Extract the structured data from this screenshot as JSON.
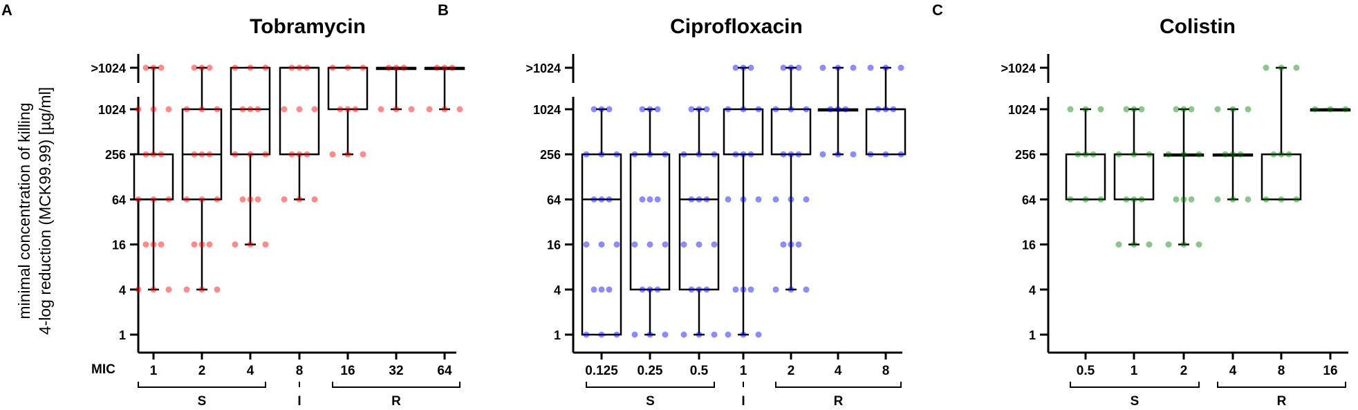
{
  "ylabel_lines": [
    "minimal concentration of killing",
    "4-log reduction (MCK99.99) [µg/ml]"
  ],
  "chart_data": [
    {
      "type": "box",
      "panel": "A",
      "title": "Tobramycin",
      "xlabel": "MIC",
      "color": "#ff0000",
      "y_scale": "log2",
      "y_ticks": [
        "1",
        "4",
        "16",
        "64",
        "256",
        "1024",
        ">1024"
      ],
      "categories": [
        "1",
        "2",
        "4",
        "8",
        "16",
        "32",
        "64"
      ],
      "groups": [
        {
          "label": "S",
          "from": "1",
          "to": "4"
        },
        {
          "label": "I",
          "from": "8",
          "to": "8"
        },
        {
          "label": "R",
          "from": "16",
          "to": "64"
        }
      ],
      "boxes": [
        {
          "category": "1",
          "whisker_low": "4",
          "q1": "64",
          "median": "64",
          "q3": "256",
          "whisker_high": ">1024",
          "points": [
            "4",
            "16",
            "64",
            "256",
            "1024",
            ">1024"
          ]
        },
        {
          "category": "2",
          "whisker_low": "4",
          "q1": "64",
          "median": "256",
          "q3": "1024",
          "whisker_high": ">1024",
          "points": [
            "4",
            "16",
            "64",
            "256",
            "1024",
            ">1024"
          ]
        },
        {
          "category": "4",
          "whisker_low": "16",
          "q1": "256",
          "median": "1024",
          "q3": ">1024",
          "whisker_high": ">1024",
          "points": [
            "16",
            "64",
            "256",
            "1024",
            ">1024"
          ]
        },
        {
          "category": "8",
          "whisker_low": "64",
          "q1": "256",
          "median": ">1024",
          "q3": ">1024",
          "whisker_high": ">1024",
          "points": [
            "64",
            "256",
            "1024",
            ">1024"
          ]
        },
        {
          "category": "16",
          "whisker_low": "256",
          "q1": "1024",
          "median": ">1024",
          "q3": ">1024",
          "whisker_high": ">1024",
          "points": [
            "256",
            "1024",
            ">1024"
          ]
        },
        {
          "category": "32",
          "whisker_low": "1024",
          "q1": ">1024",
          "median": ">1024",
          "q3": ">1024",
          "whisker_high": ">1024",
          "points": [
            "1024",
            ">1024"
          ]
        },
        {
          "category": "64",
          "whisker_low": "1024",
          "q1": ">1024",
          "median": ">1024",
          "q3": ">1024",
          "whisker_high": ">1024",
          "points": [
            "1024",
            ">1024"
          ]
        }
      ]
    },
    {
      "type": "box",
      "panel": "B",
      "title": "Ciprofloxacin",
      "xlabel": "",
      "color": "#0000ff",
      "y_scale": "log2",
      "y_ticks": [
        "1",
        "4",
        "16",
        "64",
        "256",
        "1024",
        ">1024"
      ],
      "categories": [
        "0.125",
        "0.25",
        "0.5",
        "1",
        "2",
        "4",
        "8"
      ],
      "groups": [
        {
          "label": "S",
          "from": "0.125",
          "to": "0.5"
        },
        {
          "label": "I",
          "from": "1",
          "to": "1"
        },
        {
          "label": "R",
          "from": "2",
          "to": "8"
        }
      ],
      "boxes": [
        {
          "category": "0.125",
          "whisker_low": "1",
          "q1": "1",
          "median": "64",
          "q3": "256",
          "whisker_high": "1024",
          "points": [
            "1",
            "4",
            "16",
            "64",
            "256",
            "1024"
          ]
        },
        {
          "category": "0.25",
          "whisker_low": "1",
          "q1": "4",
          "median": "256",
          "q3": "256",
          "whisker_high": "1024",
          "points": [
            "1",
            "4",
            "16",
            "64",
            "256",
            "1024"
          ]
        },
        {
          "category": "0.5",
          "whisker_low": "1",
          "q1": "4",
          "median": "64",
          "q3": "256",
          "whisker_high": "1024",
          "points": [
            "1",
            "4",
            "16",
            "64",
            "256",
            "1024"
          ]
        },
        {
          "category": "1",
          "whisker_low": "1",
          "q1": "256",
          "median": "256",
          "q3": "1024",
          "whisker_high": ">1024",
          "points": [
            "1",
            "4",
            "64",
            "256",
            "1024",
            ">1024"
          ]
        },
        {
          "category": "2",
          "whisker_low": "4",
          "q1": "256",
          "median": "256",
          "q3": "1024",
          "whisker_high": ">1024",
          "points": [
            "4",
            "16",
            "64",
            "256",
            "1024",
            ">1024"
          ]
        },
        {
          "category": "4",
          "whisker_low": "256",
          "q1": "1024",
          "median": "1024",
          "q3": "1024",
          "whisker_high": ">1024",
          "points": [
            "256",
            "1024",
            ">1024"
          ]
        },
        {
          "category": "8",
          "whisker_low": "256",
          "q1": "256",
          "median": "1024",
          "q3": "1024",
          "whisker_high": ">1024",
          "points": [
            "256",
            "1024",
            ">1024"
          ]
        }
      ]
    },
    {
      "type": "box",
      "panel": "C",
      "title": "Colistin",
      "xlabel": "",
      "color": "#008000",
      "y_scale": "log2",
      "y_ticks": [
        "1",
        "4",
        "16",
        "64",
        "256",
        "1024",
        ">1024"
      ],
      "categories": [
        "0.5",
        "1",
        "2",
        "4",
        "8",
        "16"
      ],
      "groups": [
        {
          "label": "S",
          "from": "0.5",
          "to": "2"
        },
        {
          "label": "R",
          "from": "4",
          "to": "16"
        }
      ],
      "boxes": [
        {
          "category": "0.5",
          "whisker_low": "64",
          "q1": "64",
          "median": "256",
          "q3": "256",
          "whisker_high": "1024",
          "points": [
            "64",
            "256",
            "1024"
          ]
        },
        {
          "category": "1",
          "whisker_low": "16",
          "q1": "64",
          "median": "256",
          "q3": "256",
          "whisker_high": "1024",
          "points": [
            "16",
            "64",
            "256",
            "1024"
          ]
        },
        {
          "category": "2",
          "whisker_low": "16",
          "q1": "256",
          "median": "256",
          "q3": "256",
          "whisker_high": "1024",
          "points": [
            "16",
            "64",
            "256",
            "1024"
          ]
        },
        {
          "category": "4",
          "whisker_low": "64",
          "q1": "256",
          "median": "256",
          "q3": "256",
          "whisker_high": "1024",
          "points": [
            "64",
            "256",
            "1024"
          ]
        },
        {
          "category": "8",
          "whisker_low": "64",
          "q1": "64",
          "median": "256",
          "q3": "256",
          "whisker_high": ">1024",
          "points": [
            "64",
            "256",
            ">1024"
          ]
        },
        {
          "category": "16",
          "whisker_low": "1024",
          "q1": "1024",
          "median": "1024",
          "q3": "1024",
          "whisker_high": "1024",
          "points": [
            "1024"
          ]
        }
      ]
    }
  ]
}
